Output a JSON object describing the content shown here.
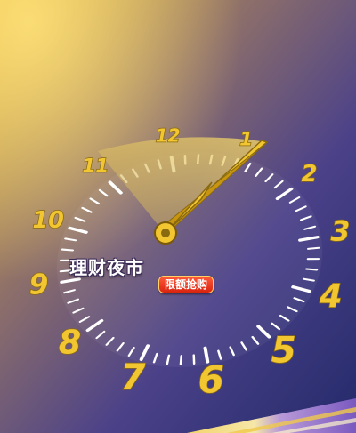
{
  "title": "理财夜市",
  "badge": "限额抢购",
  "numerals": [
    "12",
    "1",
    "2",
    "3",
    "4",
    "5",
    "6",
    "7",
    "8",
    "9",
    "10",
    "11"
  ],
  "time": {
    "hour": 10,
    "minute": 0
  },
  "colors": {
    "gold": "#f2c630",
    "gold_dark": "#8a6a10",
    "purple_dark": "#2b2d6b",
    "purple_mid": "#5a4a8a",
    "accent_red": "#e8351f"
  }
}
